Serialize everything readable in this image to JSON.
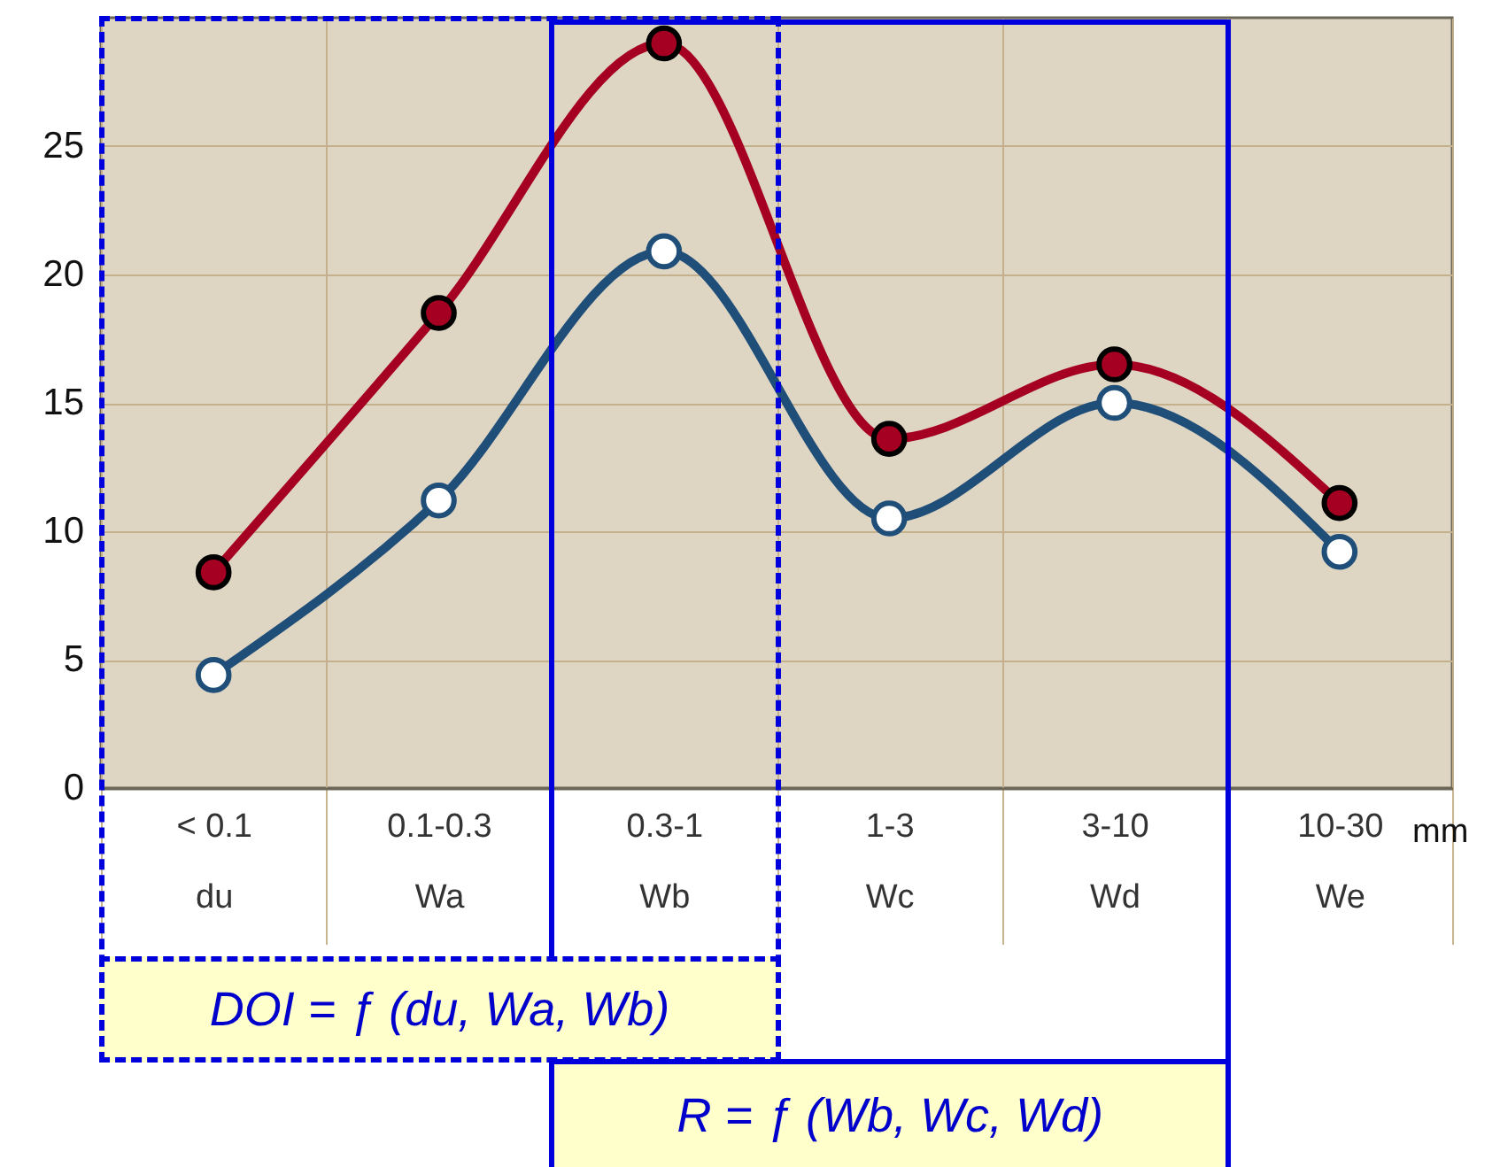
{
  "chart_data": {
    "type": "line",
    "categories": [
      "< 0.1\ndu",
      "0.1-0.3\nWa",
      "0.3-1\nWb",
      "1-3\nWc",
      "3-10\nWd",
      "10-30\nWe"
    ],
    "xlabel": "mm",
    "ylim": [
      0,
      30
    ],
    "yticks": [
      0,
      5,
      10,
      15,
      20,
      25
    ],
    "grid": true,
    "marker": "circle",
    "annotations": [
      "DOI = ƒ (du, Wa, Wb)",
      "R = ƒ (Wb, Wc, Wd)"
    ],
    "series": [
      {
        "color": "#a50021",
        "values": [
          8.4,
          18.5,
          29.0,
          13.6,
          16.5,
          11.1
        ]
      },
      {
        "color": "#1f4e79",
        "values": [
          4.4,
          11.2,
          20.9,
          10.5,
          15.0,
          9.2
        ]
      }
    ]
  }
}
